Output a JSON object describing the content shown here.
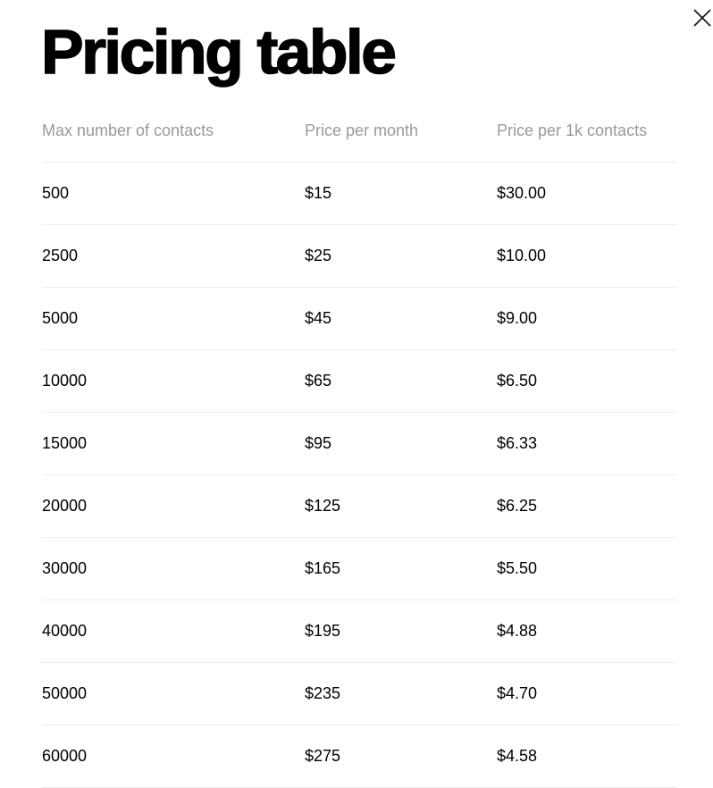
{
  "title": "Pricing table",
  "close_icon": "close-icon",
  "columns": [
    "Max number of contacts",
    "Price per month",
    "Price per 1k contacts"
  ],
  "rows": [
    [
      "500",
      "$15",
      "$30.00"
    ],
    [
      "2500",
      "$25",
      "$10.00"
    ],
    [
      "5000",
      "$45",
      "$9.00"
    ],
    [
      "10000",
      "$65",
      "$6.50"
    ],
    [
      "15000",
      "$95",
      "$6.33"
    ],
    [
      "20000",
      "$125",
      "$6.25"
    ],
    [
      "30000",
      "$165",
      "$5.50"
    ],
    [
      "40000",
      "$195",
      "$4.88"
    ],
    [
      "50000",
      "$235",
      "$4.70"
    ],
    [
      "60000",
      "$275",
      "$4.58"
    ]
  ],
  "colors": {
    "header_text": "#999999",
    "divider": "#ececec",
    "text": "#000000"
  }
}
